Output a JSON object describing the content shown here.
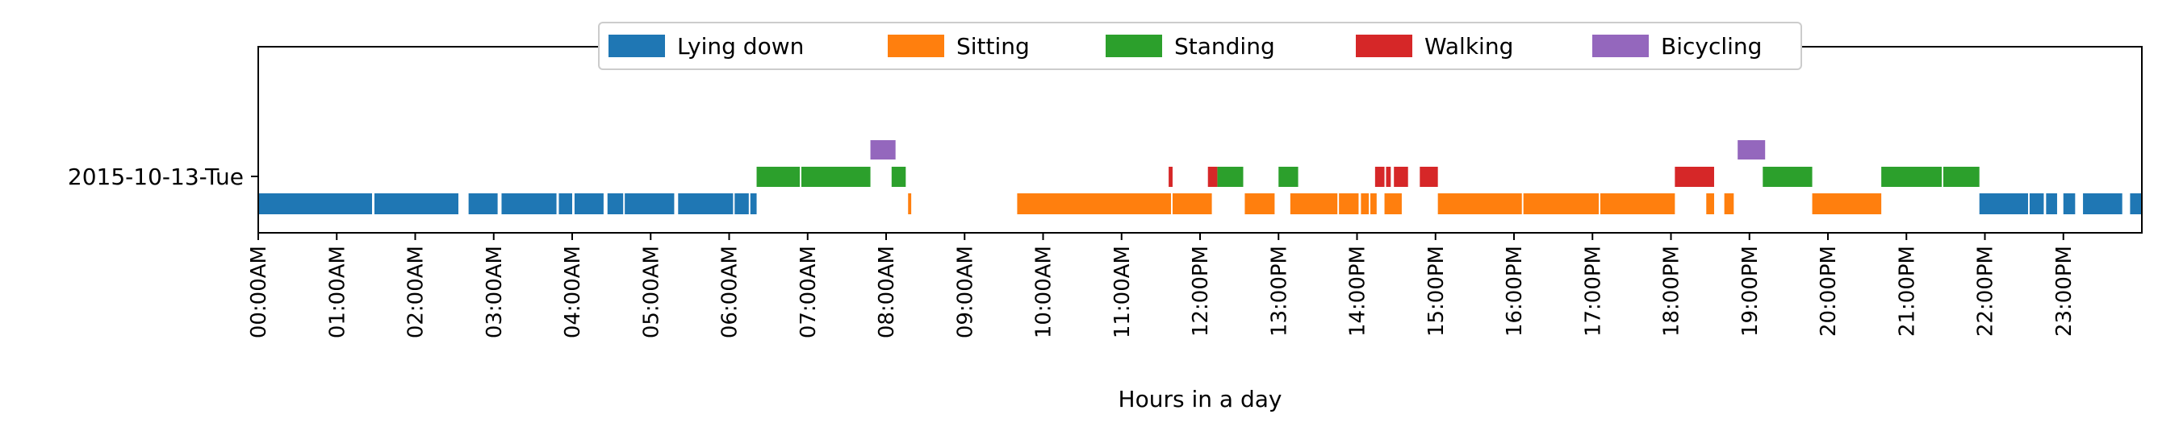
{
  "chart_data": {
    "type": "timeline",
    "title": "",
    "xlabel": "Hours in a day",
    "ylabel": "",
    "x_unit": "hours",
    "xlim": [
      0,
      24
    ],
    "grid": false,
    "legend_placement": "top-center",
    "row_label": "2015-10-13-Tue",
    "x_ticks": [
      {
        "value": 0,
        "label": "00:00AM"
      },
      {
        "value": 1,
        "label": "01:00AM"
      },
      {
        "value": 2,
        "label": "02:00AM"
      },
      {
        "value": 3,
        "label": "03:00AM"
      },
      {
        "value": 4,
        "label": "04:00AM"
      },
      {
        "value": 5,
        "label": "05:00AM"
      },
      {
        "value": 6,
        "label": "06:00AM"
      },
      {
        "value": 7,
        "label": "07:00AM"
      },
      {
        "value": 8,
        "label": "08:00AM"
      },
      {
        "value": 9,
        "label": "09:00AM"
      },
      {
        "value": 10,
        "label": "10:00AM"
      },
      {
        "value": 11,
        "label": "11:00AM"
      },
      {
        "value": 12,
        "label": "12:00PM"
      },
      {
        "value": 13,
        "label": "13:00PM"
      },
      {
        "value": 14,
        "label": "14:00PM"
      },
      {
        "value": 15,
        "label": "15:00PM"
      },
      {
        "value": 16,
        "label": "16:00PM"
      },
      {
        "value": 17,
        "label": "17:00PM"
      },
      {
        "value": 18,
        "label": "18:00PM"
      },
      {
        "value": 19,
        "label": "19:00PM"
      },
      {
        "value": 20,
        "label": "20:00PM"
      },
      {
        "value": 21,
        "label": "21:00PM"
      },
      {
        "value": 22,
        "label": "22:00PM"
      },
      {
        "value": 23,
        "label": "23:00PM"
      }
    ],
    "series": [
      {
        "name": "Lying down",
        "color": "#1f77b4",
        "level": 0,
        "segments": [
          [
            0.0,
            1.45
          ],
          [
            1.48,
            2.55
          ],
          [
            2.68,
            3.05
          ],
          [
            3.1,
            3.8
          ],
          [
            3.83,
            4.0
          ],
          [
            4.03,
            4.4
          ],
          [
            4.45,
            4.65
          ],
          [
            4.67,
            5.3
          ],
          [
            5.35,
            6.05
          ],
          [
            6.07,
            6.25
          ],
          [
            6.27,
            6.35
          ],
          [
            21.93,
            22.55
          ],
          [
            22.57,
            22.75
          ],
          [
            22.78,
            22.92
          ],
          [
            23.0,
            23.15
          ],
          [
            23.25,
            23.75
          ],
          [
            23.85,
            24.0
          ]
        ]
      },
      {
        "name": "Sitting",
        "color": "#ff7f0e",
        "level": 0,
        "segments": [
          [
            8.28,
            8.32
          ],
          [
            9.67,
            11.63
          ],
          [
            11.65,
            12.15
          ],
          [
            12.57,
            12.95
          ],
          [
            13.15,
            13.75
          ],
          [
            13.77,
            14.02
          ],
          [
            14.05,
            14.15
          ],
          [
            14.17,
            14.25
          ],
          [
            14.35,
            14.57
          ],
          [
            15.03,
            16.1
          ],
          [
            16.12,
            17.08
          ],
          [
            17.1,
            18.05
          ],
          [
            18.45,
            18.55
          ],
          [
            18.68,
            18.8
          ],
          [
            19.8,
            20.68
          ]
        ]
      },
      {
        "name": "Standing",
        "color": "#2ca02c",
        "level": 1,
        "segments": [
          [
            6.35,
            6.9
          ],
          [
            6.92,
            7.8
          ],
          [
            8.07,
            8.25
          ],
          [
            12.22,
            12.55
          ],
          [
            13.0,
            13.25
          ],
          [
            19.17,
            19.8
          ],
          [
            20.68,
            21.45
          ],
          [
            21.47,
            21.93
          ]
        ]
      },
      {
        "name": "Walking",
        "color": "#d62728",
        "level": 1,
        "segments": [
          [
            11.6,
            11.65
          ],
          [
            12.1,
            12.22
          ],
          [
            14.23,
            14.35
          ],
          [
            14.37,
            14.43
          ],
          [
            14.47,
            14.65
          ],
          [
            14.8,
            15.03
          ],
          [
            18.05,
            18.55
          ]
        ]
      },
      {
        "name": "Bicycling",
        "color": "#9467bd",
        "level": 2,
        "segments": [
          [
            7.8,
            8.12
          ],
          [
            18.85,
            19.2
          ]
        ]
      }
    ]
  }
}
